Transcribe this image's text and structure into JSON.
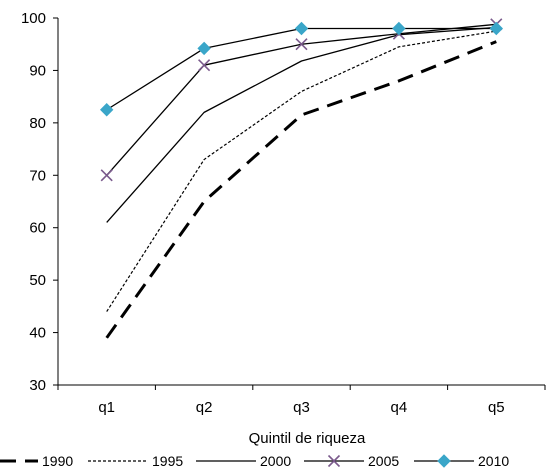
{
  "chart_data": {
    "type": "line",
    "title": "",
    "xlabel": "Quintil de riqueza",
    "ylabel": "",
    "categories": [
      "q1",
      "q2",
      "q3",
      "q4",
      "q5"
    ],
    "ylim": [
      30,
      100
    ],
    "yticks": [
      30,
      40,
      50,
      60,
      70,
      80,
      90,
      100
    ],
    "grid": false,
    "legend_position": "bottom",
    "series": [
      {
        "name": "1990",
        "values": [
          39.0,
          65.0,
          81.5,
          88.0,
          95.5
        ],
        "color": "#000000",
        "line_style": "long-dash-thick",
        "marker": "none"
      },
      {
        "name": "1995",
        "values": [
          44.0,
          73.0,
          86.0,
          94.5,
          97.5
        ],
        "color": "#000000",
        "line_style": "dotted-thin",
        "marker": "none"
      },
      {
        "name": "2000",
        "values": [
          61.0,
          82.0,
          91.8,
          96.8,
          98.2
        ],
        "color": "#000000",
        "line_style": "solid",
        "marker": "none"
      },
      {
        "name": "2005",
        "values": [
          70.0,
          91.0,
          95.0,
          97.0,
          98.8
        ],
        "color": "#000000",
        "line_style": "solid",
        "marker": "x",
        "marker_color": "#7a5a8c"
      },
      {
        "name": "2010",
        "values": [
          82.5,
          94.2,
          98.0,
          98.0,
          98.0
        ],
        "color": "#000000",
        "line_style": "solid",
        "marker": "diamond",
        "marker_color": "#3aa6c9"
      }
    ]
  }
}
